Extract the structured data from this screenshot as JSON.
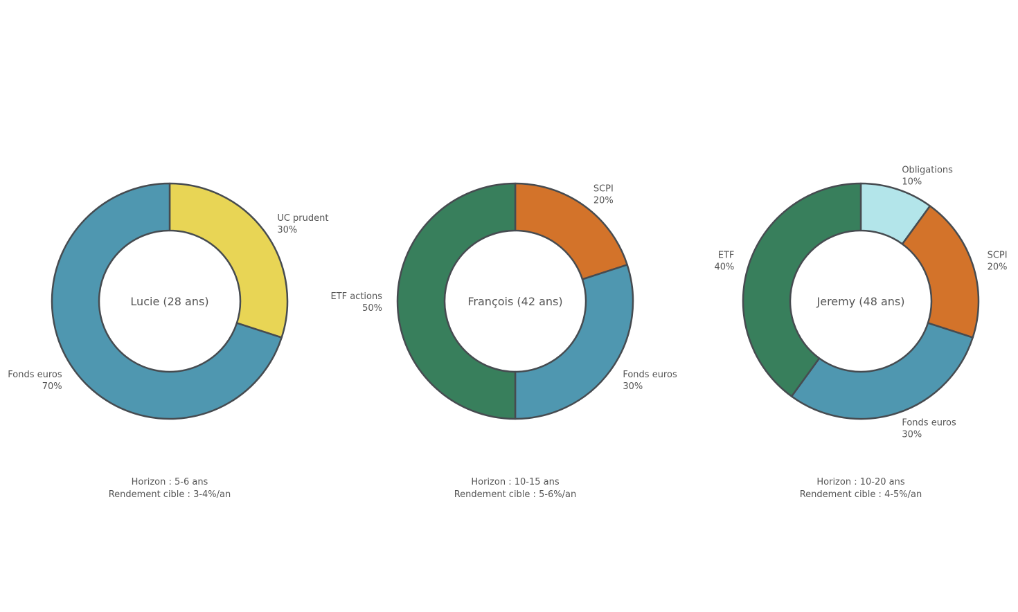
{
  "chart_data": [
    {
      "type": "pie",
      "donut": true,
      "title": "Lucie (28 ans)",
      "start": "top",
      "direction": "clockwise",
      "slices": [
        {
          "label": "UC prudent",
          "value": 30,
          "color": "#E8D555"
        },
        {
          "label": "Fonds euros",
          "value": 70,
          "color": "#4F97B0"
        }
      ],
      "footer": [
        "Horizon : 5-6 ans",
        "Rendement cible : 3-4%/an"
      ]
    },
    {
      "type": "pie",
      "donut": true,
      "title": "François (42 ans)",
      "start": "top",
      "direction": "clockwise",
      "slices": [
        {
          "label": "SCPI",
          "value": 20,
          "color": "#D3732A"
        },
        {
          "label": "Fonds euros",
          "value": 30,
          "color": "#4F97B0"
        },
        {
          "label": "ETF actions",
          "value": 50,
          "color": "#387F5C"
        }
      ],
      "footer": [
        "Horizon : 10-15 ans",
        "Rendement cible : 5-6%/an"
      ]
    },
    {
      "type": "pie",
      "donut": true,
      "title": "Jeremy (48 ans)",
      "start": "top",
      "direction": "clockwise",
      "slices": [
        {
          "label": "Obligations",
          "value": 10,
          "color": "#B3E5EA"
        },
        {
          "label": "SCPI",
          "value": 20,
          "color": "#D3732A"
        },
        {
          "label": "Fonds euros",
          "value": 30,
          "color": "#4F97B0"
        },
        {
          "label": "ETF",
          "value": 40,
          "color": "#387F5C"
        }
      ],
      "footer": [
        "Horizon : 10-20 ans",
        "Rendement cible : 4-5%/an"
      ]
    }
  ],
  "stroke_color": "#464B50"
}
